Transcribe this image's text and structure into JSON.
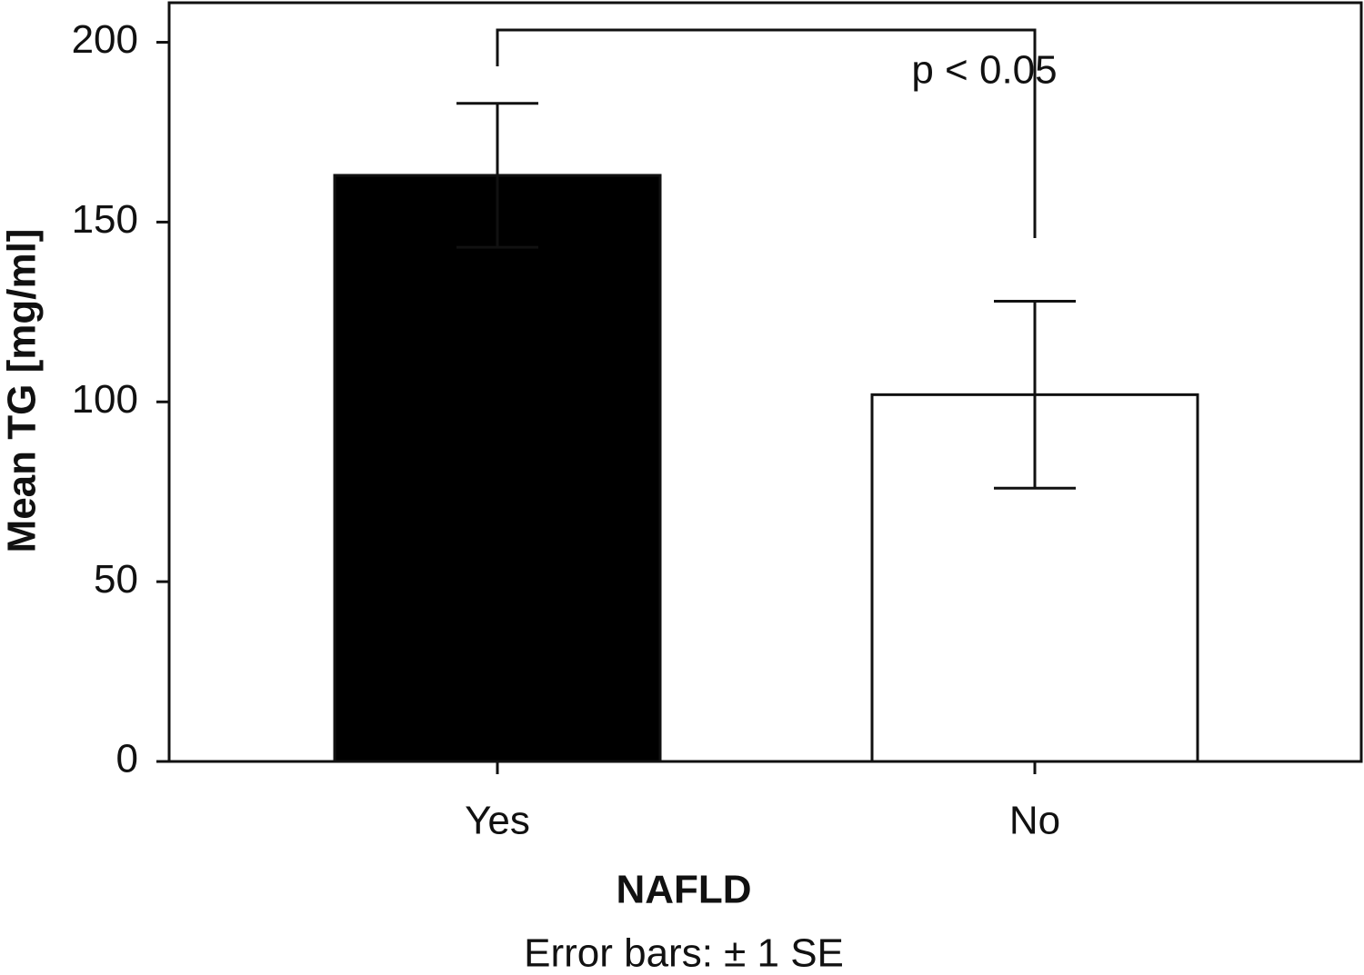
{
  "chart_data": {
    "type": "bar",
    "categories": [
      "Yes",
      "No"
    ],
    "values": [
      163,
      102
    ],
    "errors": [
      20,
      26
    ],
    "colors": [
      "#000000",
      "#ffffff"
    ],
    "xlabel": "NAFLD",
    "ylabel": "Mean TG [mg/ml]",
    "annotation": "p < 0.05",
    "note": "Error bars: ± 1 SE",
    "ylim": [
      0,
      211
    ],
    "yticks": [
      0,
      50,
      100,
      150,
      200
    ]
  }
}
